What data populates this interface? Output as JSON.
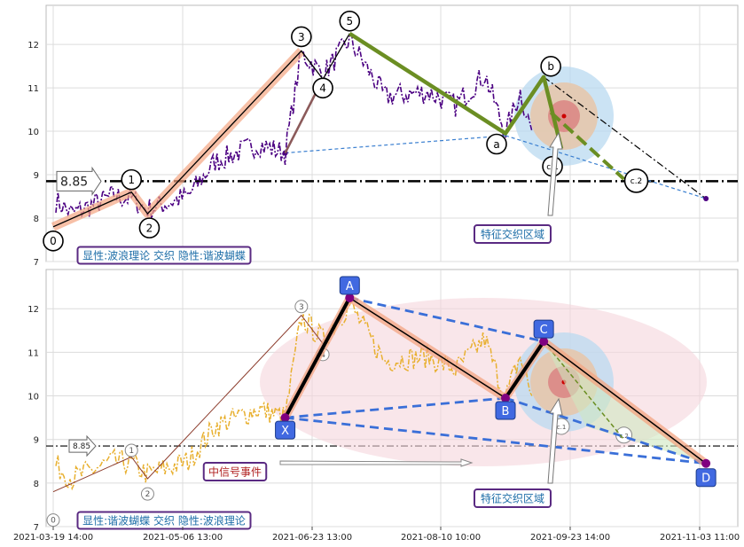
{
  "chart_data": [
    {
      "type": "line",
      "panel": "top",
      "y_ticks": [
        "7",
        "8",
        "9",
        "10",
        "11",
        "12"
      ],
      "ylim": [
        7,
        12.9
      ],
      "grid": true,
      "price_level": {
        "value": 8.85,
        "label": "8.85"
      },
      "caption": "显性:波浪理论 交织 隐性:谐波蝴蝶",
      "annotation": "特征交织区域",
      "wave_points": [
        {
          "label": "0",
          "date": "2021-03-19",
          "value": 7.8
        },
        {
          "label": "1",
          "date": "2021-04-17",
          "value": 8.6
        },
        {
          "label": "2",
          "date": "2021-04-23",
          "value": 8.1
        },
        {
          "label": "3",
          "date": "2021-06-19",
          "value": 11.85
        },
        {
          "label": "4",
          "date": "2021-06-27",
          "value": 11.2
        },
        {
          "label": "5",
          "date": "2021-07-07",
          "value": 12.25
        },
        {
          "label": "a",
          "date": "2021-09-01",
          "value": 9.95
        },
        {
          "label": "b",
          "date": "2021-09-14",
          "value": 11.25
        },
        {
          "label": "c.1",
          "date": "2021-09-20",
          "value": 9.6
        },
        {
          "label": "c.2",
          "date": "2021-10-10",
          "value": 8.9
        }
      ],
      "price_series": {
        "name": "",
        "color": "#4b0082",
        "style": "dash-dot"
      }
    },
    {
      "type": "line",
      "panel": "bottom",
      "y_ticks": [
        "7",
        "8",
        "9",
        "10",
        "11",
        "12"
      ],
      "ylim": [
        7,
        12.9
      ],
      "grid": true,
      "price_level": {
        "value": 8.85,
        "label": "8.85"
      },
      "caption": "显性:谐波蝴蝶 交织 隐性:波浪理论",
      "annotations": [
        "中信号事件",
        "特征交织区域"
      ],
      "harmonic_points": [
        {
          "label": "X",
          "date": "2021-06-13",
          "value": 9.5
        },
        {
          "label": "A",
          "date": "2021-07-07",
          "value": 12.25
        },
        {
          "label": "B",
          "date": "2021-09-01",
          "value": 9.95
        },
        {
          "label": "C",
          "date": "2021-09-14",
          "value": 11.25
        },
        {
          "label": "D",
          "date": "2021-11-05",
          "value": 8.45
        }
      ],
      "price_series": {
        "name": "",
        "color": "#e8b030",
        "style": "dash-dot"
      }
    }
  ],
  "x_axis": {
    "tick_labels": [
      "2021-03-19 14:00",
      "2021-05-06 13:00",
      "2021-06-23 13:00",
      "2021-08-10 10:00",
      "2021-09-23 14:00",
      "2021-11-03 11:00"
    ],
    "tick_dates": [
      "2021-03-19",
      "2021-05-06",
      "2021-06-23",
      "2021-08-10",
      "2021-09-23",
      "2021-11-03"
    ]
  },
  "colors": {
    "wave_line": "#000000",
    "wave_glow": "#f4a582",
    "wave_green": "#6b8e23",
    "harmonic_blue": "#3a6fd8",
    "harmonic_marker": "#4169e1",
    "caption_border": "#5a2a82",
    "caption_text": "#1e6ea8",
    "event_text": "#b02020",
    "zone_blue": "#b9d9f0",
    "zone_orange": "#e8c6a8",
    "zone_red": "#d98080",
    "ellipse": "#f5d6dc"
  }
}
